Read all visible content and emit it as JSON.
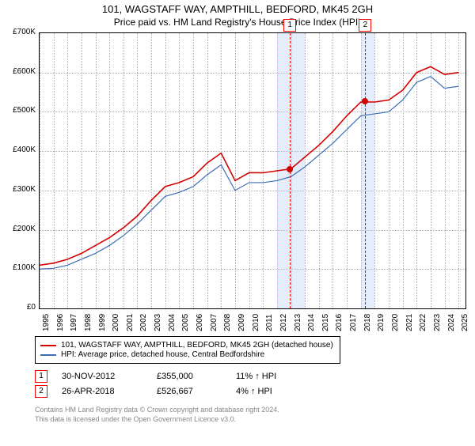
{
  "title": "101, WAGSTAFF WAY, AMPTHILL, BEDFORD, MK45 2GH",
  "subtitle": "Price paid vs. HM Land Registry's House Price Index (HPI)",
  "chart": {
    "type": "line",
    "background_color": "#ffffff",
    "grid_color": "#b0b0b0",
    "border_color": "#000000",
    "xlim": [
      1995,
      2025.5
    ],
    "ylim": [
      0,
      700000
    ],
    "ytick_step": 100000,
    "ytick_labels": [
      "£0",
      "£100K",
      "£200K",
      "£300K",
      "£400K",
      "£500K",
      "£600K",
      "£700K"
    ],
    "xtick_years": [
      1995,
      1996,
      1997,
      1998,
      1999,
      2000,
      2001,
      2002,
      2003,
      2004,
      2005,
      2006,
      2007,
      2008,
      2009,
      2010,
      2011,
      2012,
      2013,
      2014,
      2015,
      2016,
      2017,
      2018,
      2019,
      2020,
      2021,
      2022,
      2023,
      2024,
      2025
    ],
    "font_size_axis": 10,
    "series": [
      {
        "id": "property",
        "label": "101, WAGSTAFF WAY, AMPTHILL, BEDFORD, MK45 2GH (detached house)",
        "color": "#d40000",
        "line_width": 1.6,
        "dataYears": [
          1995,
          1996,
          1997,
          1998,
          1999,
          2000,
          2001,
          2002,
          2003,
          2004,
          2005,
          2006,
          2007,
          2008,
          2009,
          2010,
          2011,
          2012,
          2013,
          2014,
          2015,
          2016,
          2017,
          2018,
          2019,
          2020,
          2021,
          2022,
          2023,
          2024,
          2025
        ],
        "dataValues": [
          110000,
          115000,
          125000,
          140000,
          160000,
          180000,
          205000,
          235000,
          275000,
          310000,
          320000,
          335000,
          370000,
          395000,
          325000,
          345000,
          345000,
          350000,
          355000,
          385000,
          415000,
          450000,
          490000,
          525000,
          525000,
          530000,
          555000,
          600000,
          615000,
          595000,
          600000
        ]
      },
      {
        "id": "hpi",
        "label": "HPI: Average price, detached house, Central Bedfordshire",
        "color": "#3b6db5",
        "line_width": 1.2,
        "dataYears": [
          1995,
          1996,
          1997,
          1998,
          1999,
          2000,
          2001,
          2002,
          2003,
          2004,
          2005,
          2006,
          2007,
          2008,
          2009,
          2010,
          2011,
          2012,
          2013,
          2014,
          2015,
          2016,
          2017,
          2018,
          2019,
          2020,
          2021,
          2022,
          2023,
          2024,
          2025
        ],
        "dataValues": [
          100000,
          102000,
          110000,
          125000,
          140000,
          160000,
          185000,
          215000,
          250000,
          285000,
          295000,
          310000,
          340000,
          365000,
          300000,
          320000,
          320000,
          325000,
          335000,
          360000,
          390000,
          420000,
          455000,
          490000,
          495000,
          500000,
          530000,
          575000,
          590000,
          560000,
          565000
        ]
      }
    ],
    "sales": [
      {
        "n": "1",
        "year": 2012.92,
        "band_start": 2012.0,
        "band_end": 2014.0,
        "date": "30-NOV-2012",
        "price_label": "£355,000",
        "price": 355000,
        "delta": "11% ↑ HPI",
        "point_color": "#d40000"
      },
      {
        "n": "2",
        "year": 2018.32,
        "band_start": 2018.0,
        "band_end": 2019.0,
        "date": "26-APR-2018",
        "price_label": "£526,667",
        "price": 526667,
        "delta": "4% ↑ HPI",
        "point_color": "#d40000"
      }
    ]
  },
  "copyright": {
    "l1": "Contains HM Land Registry data © Crown copyright and database right 2024.",
    "l2": "This data is licensed under the Open Government Licence v3.0."
  }
}
